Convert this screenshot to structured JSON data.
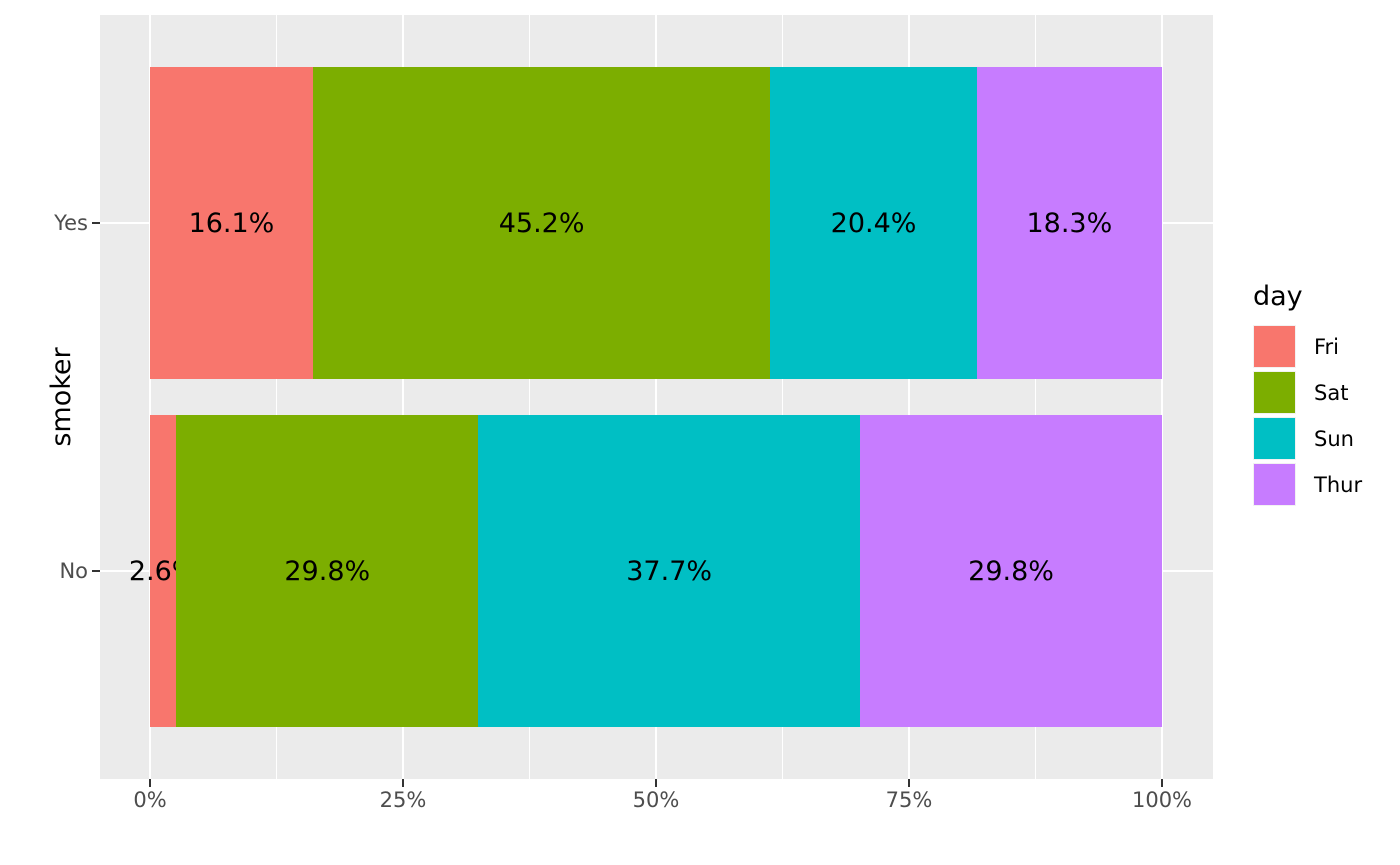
{
  "chart_data": {
    "type": "bar",
    "subtype": "stacked-horizontal-percent",
    "title": "",
    "xlabel": "",
    "ylabel": "smoker",
    "categories": [
      "Yes",
      "No"
    ],
    "series": [
      {
        "name": "Fri",
        "color": "#F8766D",
        "values": [
          16.1,
          2.6
        ]
      },
      {
        "name": "Sat",
        "color": "#7CAE00",
        "values": [
          45.2,
          29.8
        ]
      },
      {
        "name": "Sun",
        "color": "#00BFC4",
        "values": [
          20.4,
          37.7
        ]
      },
      {
        "name": "Thur",
        "color": "#C77CFF",
        "values": [
          18.3,
          29.8
        ]
      }
    ],
    "bar_labels": [
      [
        "16.1%",
        "45.2%",
        "20.4%",
        "18.3%"
      ],
      [
        "2.6%",
        "29.8%",
        "37.7%",
        "29.8%"
      ]
    ],
    "x_axis": {
      "ticks": [
        "0%",
        "25%",
        "50%",
        "75%",
        "100%"
      ],
      "tick_values": [
        0,
        25,
        50,
        75,
        100
      ],
      "minor_tick_values": [
        12.5,
        37.5,
        62.5,
        87.5
      ],
      "range": [
        0,
        100
      ]
    },
    "legend": {
      "title": "day",
      "position": "right",
      "entries": [
        "Fri",
        "Sat",
        "Sun",
        "Thur"
      ]
    },
    "style": {
      "panel_bg": "#EBEBEB",
      "grid_color": "#FFFFFF",
      "tick_text_color": "#4D4D4D",
      "tick_mark_color": "#333333",
      "label_color": "#000000"
    }
  }
}
